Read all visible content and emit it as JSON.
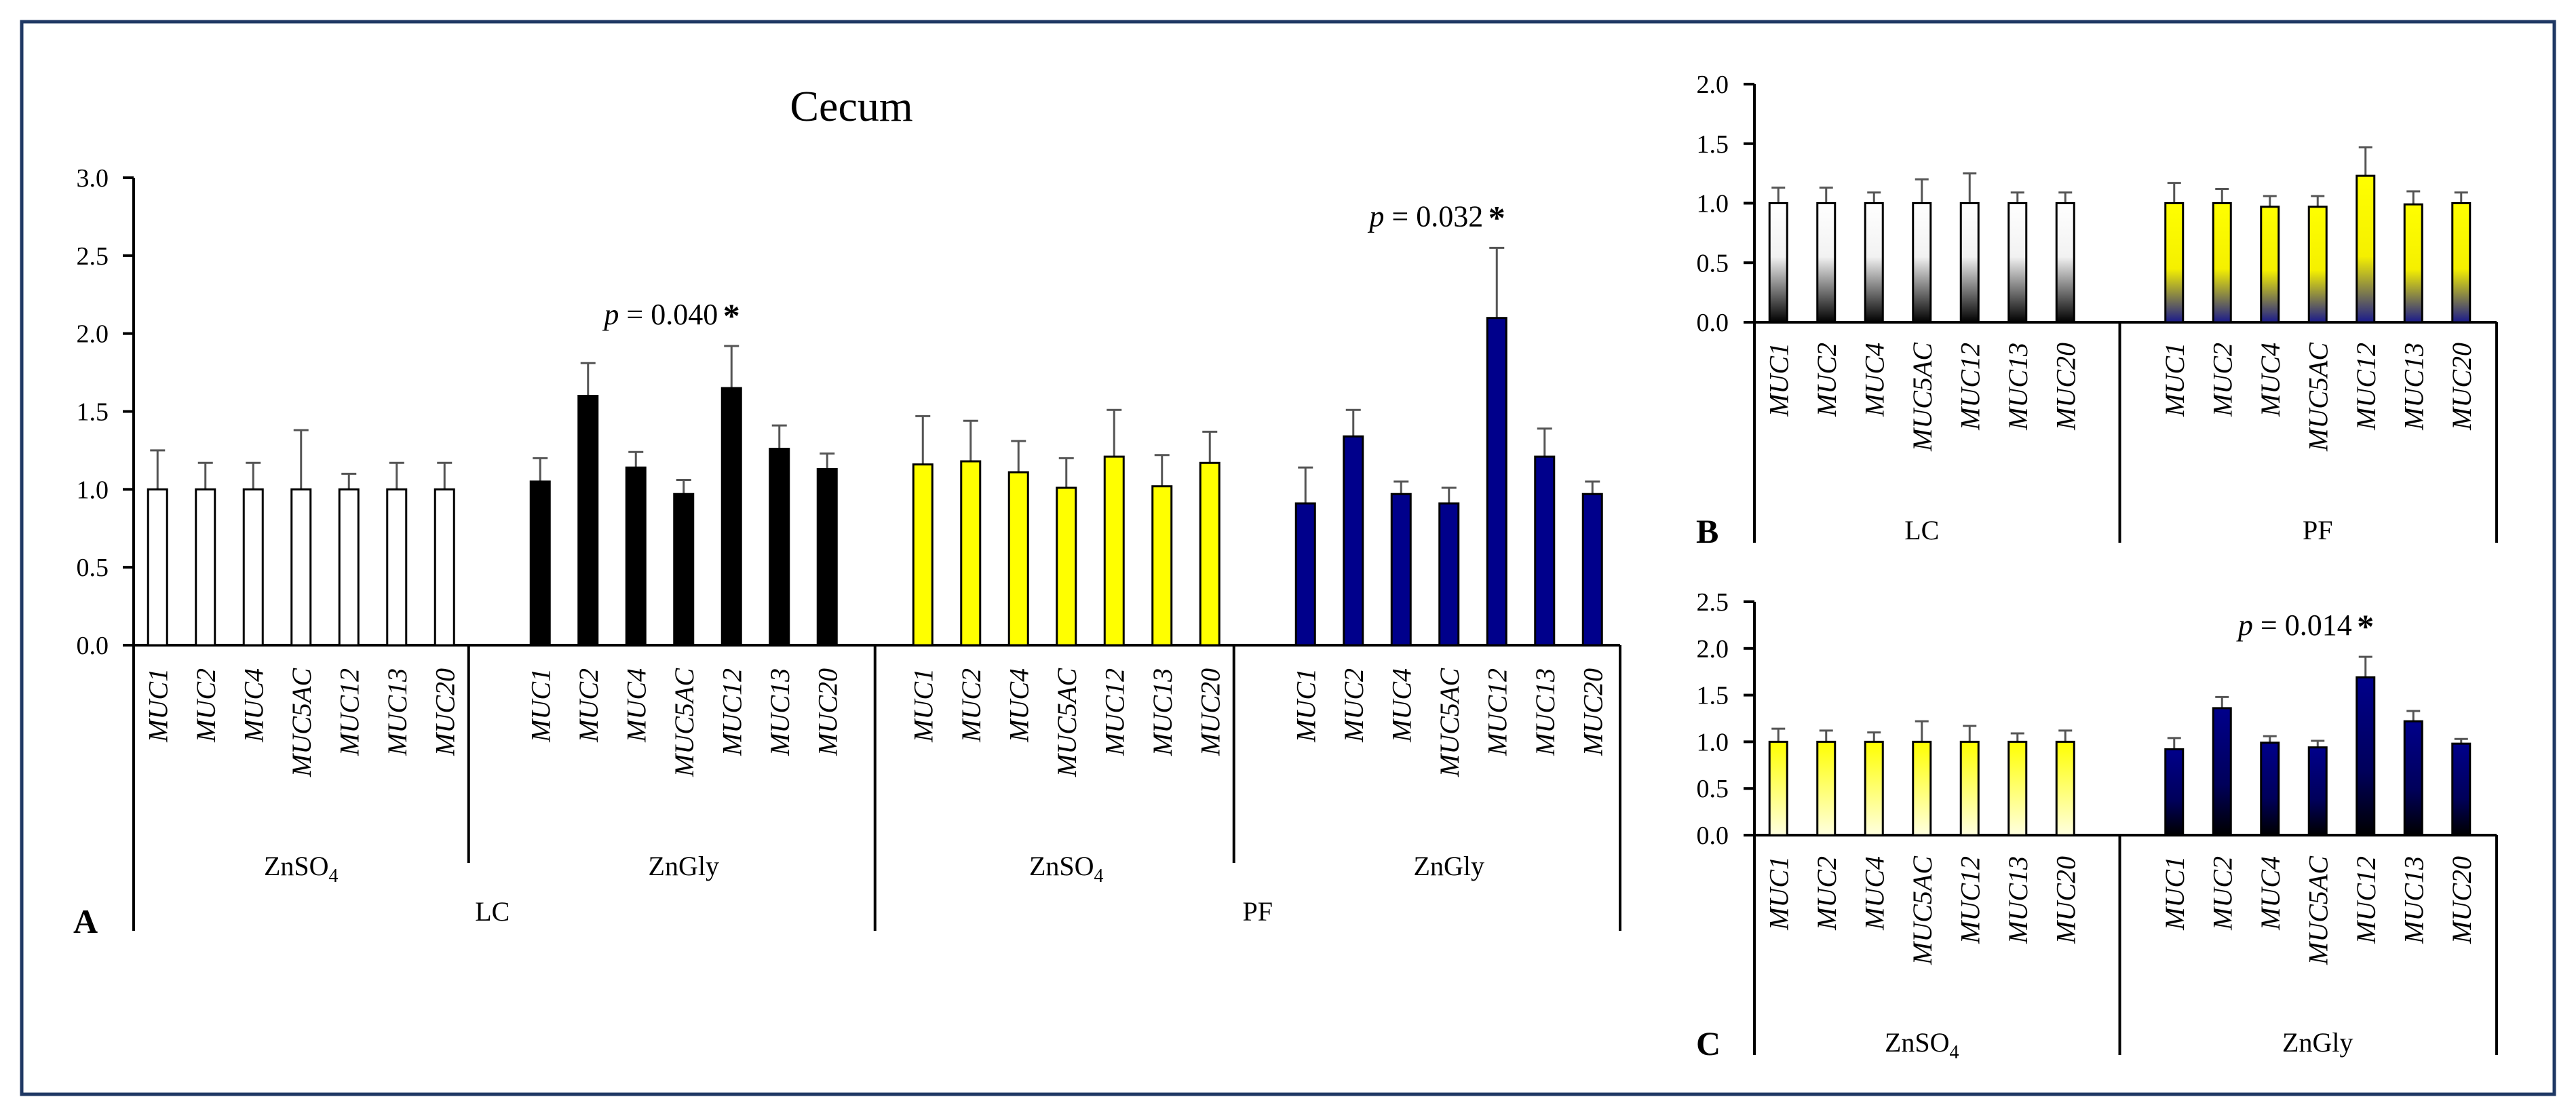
{
  "chart_data": [
    {
      "panel": "A",
      "type": "bar",
      "title": "Cecum",
      "ylim": [
        0,
        3.0
      ],
      "yticks": [
        0.0,
        0.5,
        1.0,
        1.5,
        2.0,
        2.5,
        3.0
      ],
      "ytick_labels": [
        "0.0",
        "0.5",
        "1.0",
        "1.5",
        "2.0",
        "2.5",
        "3.0"
      ],
      "categories": [
        "MUC1",
        "MUC2",
        "MUC4",
        "MUC5AC",
        "MUC12",
        "MUC13",
        "MUC20"
      ],
      "series": [
        {
          "name": "LC ZnSO4",
          "fill": "white",
          "values": [
            1.0,
            1.0,
            1.0,
            1.0,
            1.0,
            1.0,
            1.0
          ],
          "errors": [
            0.25,
            0.17,
            0.17,
            0.38,
            0.1,
            0.17,
            0.17
          ]
        },
        {
          "name": "LC ZnGly",
          "fill": "black",
          "values": [
            1.05,
            1.6,
            1.14,
            0.97,
            1.65,
            1.26,
            1.13
          ],
          "errors": [
            0.15,
            0.21,
            0.1,
            0.09,
            0.27,
            0.15,
            0.1
          ]
        },
        {
          "name": "PF ZnSO4",
          "fill": "yellow",
          "values": [
            1.16,
            1.18,
            1.11,
            1.01,
            1.21,
            1.02,
            1.17
          ],
          "errors": [
            0.31,
            0.26,
            0.2,
            0.19,
            0.3,
            0.2,
            0.2
          ]
        },
        {
          "name": "PF ZnGly",
          "fill": "blue",
          "values": [
            0.91,
            1.34,
            0.97,
            0.91,
            2.1,
            1.21,
            0.97
          ],
          "errors": [
            0.23,
            0.17,
            0.08,
            0.1,
            0.45,
            0.18,
            0.08
          ]
        }
      ],
      "group_labels_top": [
        {
          "prefix": "ZnSO",
          "sub": "4"
        },
        {
          "prefix": "ZnGly",
          "sub": ""
        },
        {
          "prefix": "ZnSO",
          "sub": "4"
        },
        {
          "prefix": "ZnGly",
          "sub": ""
        }
      ],
      "group_labels_bottom": [
        "LC",
        "PF"
      ],
      "annotations": [
        {
          "series": 1,
          "category": 4,
          "italic": "p",
          "text": " = 0.040",
          "star": "*"
        },
        {
          "series": 3,
          "category": 4,
          "italic": "p",
          "text": " = 0.032",
          "star": "*"
        }
      ]
    },
    {
      "panel": "B",
      "type": "bar",
      "ylim": [
        0,
        2.0
      ],
      "yticks": [
        0.0,
        0.5,
        1.0,
        1.5,
        2.0
      ],
      "ytick_labels": [
        "0.0",
        "0.5",
        "1.0",
        "1.5",
        "2.0"
      ],
      "categories": [
        "MUC1",
        "MUC2",
        "MUC4",
        "MUC5AC",
        "MUC12",
        "MUC13",
        "MUC20"
      ],
      "series": [
        {
          "name": "LC",
          "fill": "gradient-white-black",
          "values": [
            1.0,
            1.0,
            1.0,
            1.0,
            1.0,
            1.0,
            1.0
          ],
          "errors": [
            0.13,
            0.13,
            0.09,
            0.2,
            0.25,
            0.09,
            0.09
          ]
        },
        {
          "name": "PF",
          "fill": "gradient-yellow-blue",
          "values": [
            1.0,
            1.0,
            0.97,
            0.97,
            1.23,
            0.99,
            1.0
          ],
          "errors": [
            0.17,
            0.12,
            0.09,
            0.09,
            0.24,
            0.11,
            0.09
          ]
        }
      ],
      "group_labels": [
        "LC",
        "PF"
      ],
      "annotations": []
    },
    {
      "panel": "C",
      "type": "bar",
      "ylim": [
        0,
        2.5
      ],
      "yticks": [
        0.0,
        0.5,
        1.0,
        1.5,
        2.0,
        2.5
      ],
      "ytick_labels": [
        "0.0",
        "0.5",
        "1.0",
        "1.5",
        "2.0",
        "2.5"
      ],
      "categories": [
        "MUC1",
        "MUC2",
        "MUC4",
        "MUC5AC",
        "MUC12",
        "MUC13",
        "MUC20"
      ],
      "series": [
        {
          "name": "ZnSO4",
          "fill": "gradient-yellow-white",
          "values": [
            1.0,
            1.0,
            1.0,
            1.0,
            1.0,
            1.0,
            1.0
          ],
          "errors": [
            0.14,
            0.12,
            0.1,
            0.22,
            0.17,
            0.09,
            0.12
          ]
        },
        {
          "name": "ZnGly",
          "fill": "gradient-blue-black",
          "values": [
            0.92,
            1.36,
            0.99,
            0.94,
            1.69,
            1.22,
            0.98
          ],
          "errors": [
            0.12,
            0.12,
            0.07,
            0.07,
            0.22,
            0.11,
            0.05
          ]
        }
      ],
      "group_labels": [
        {
          "prefix": "ZnSO",
          "sub": "4"
        },
        {
          "prefix": "ZnGly",
          "sub": ""
        }
      ],
      "annotations": [
        {
          "series": 1,
          "category": 4,
          "italic": "p",
          "text": " = 0.014",
          "star": "*"
        }
      ]
    }
  ]
}
